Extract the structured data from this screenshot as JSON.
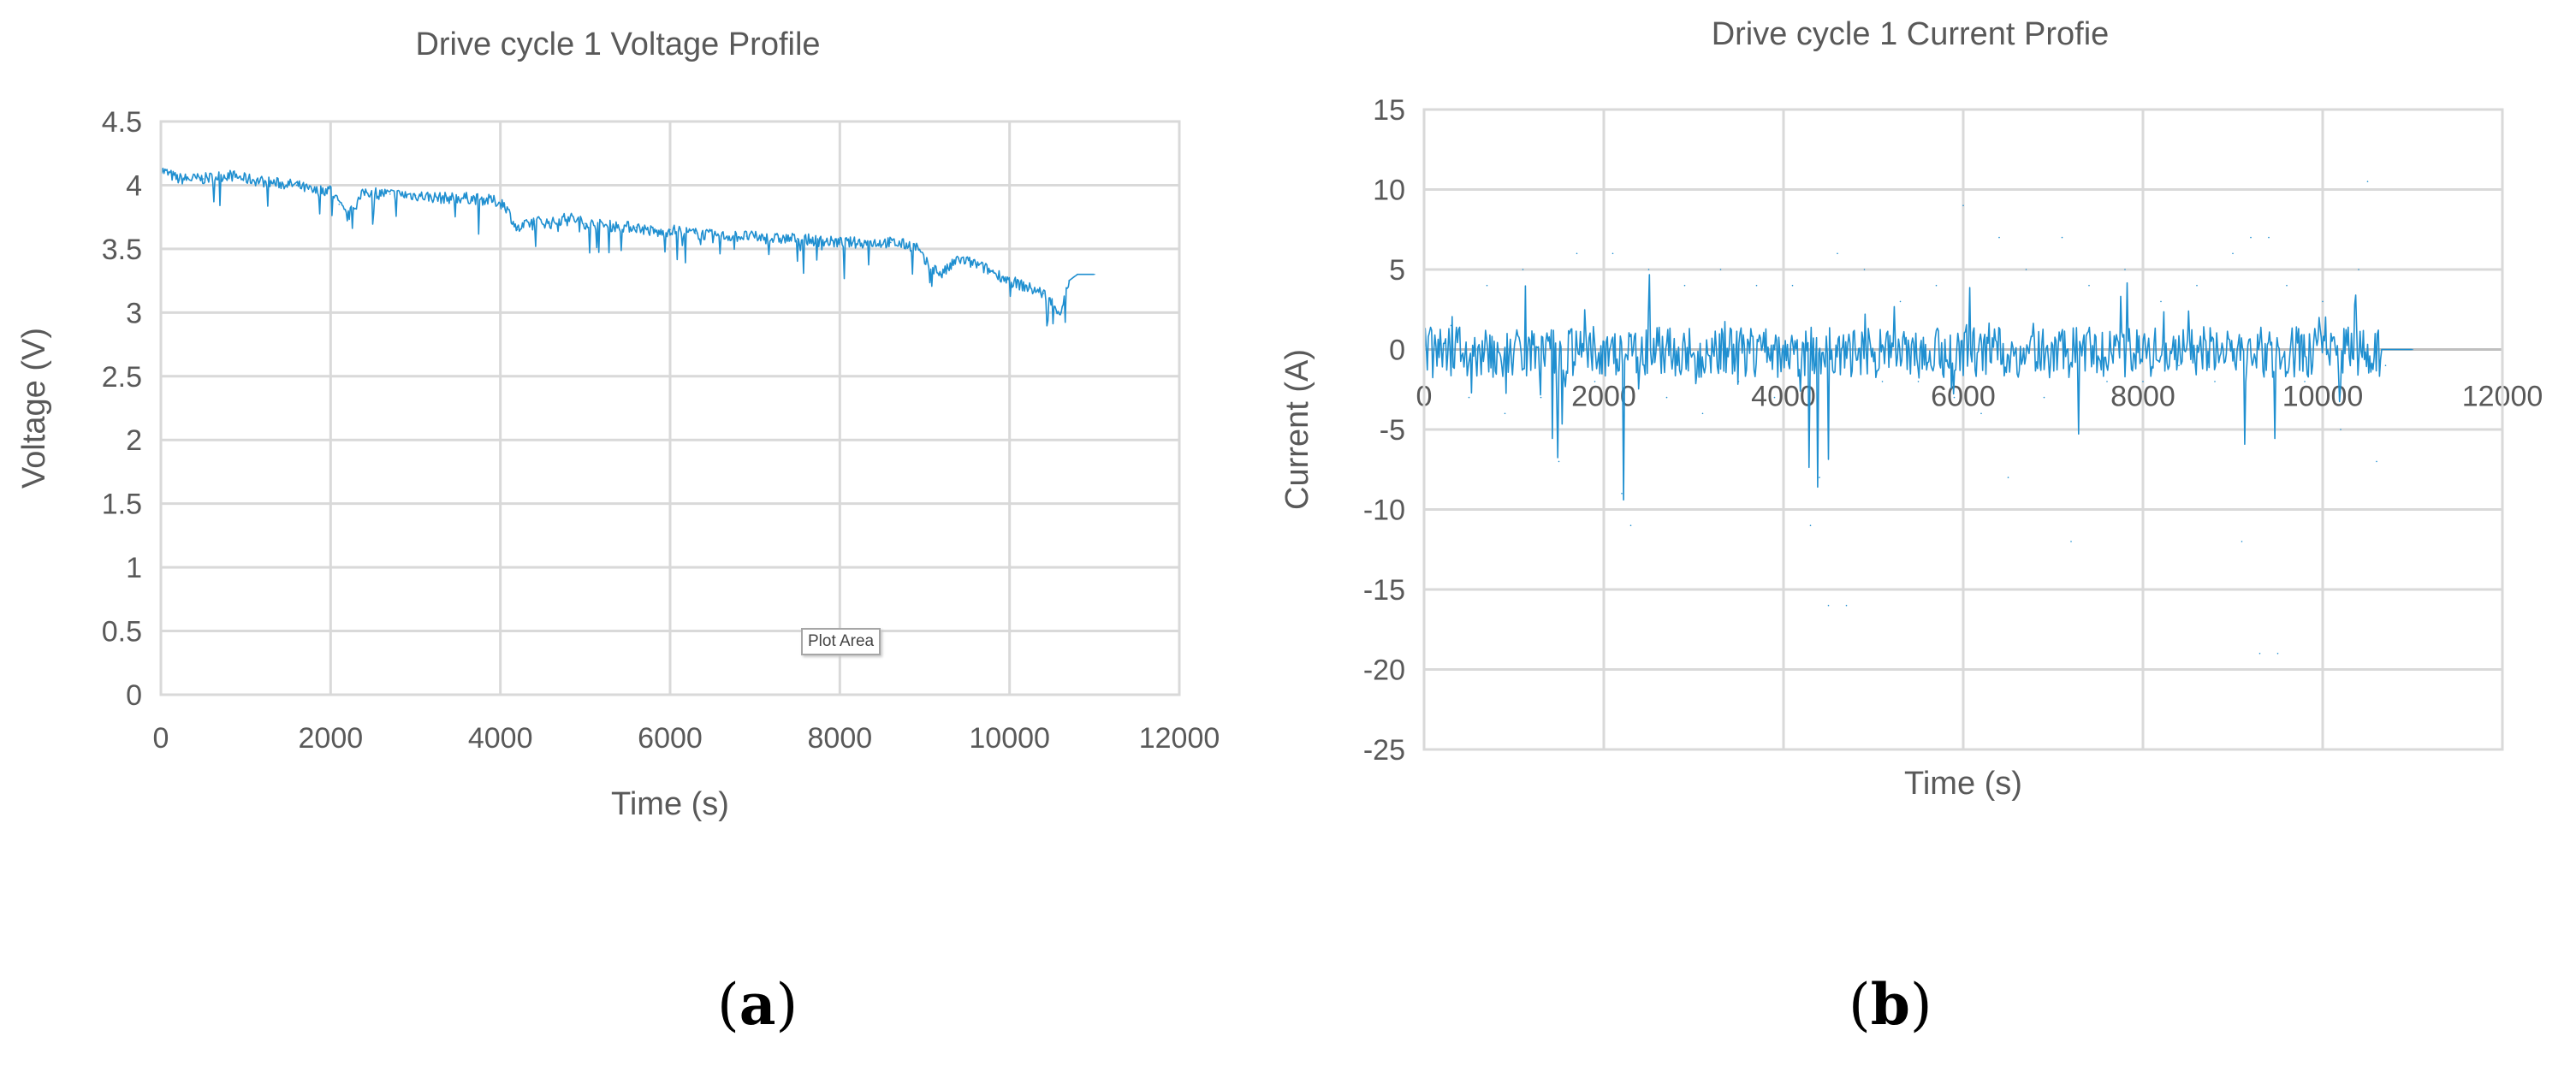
{
  "panels": [
    {
      "label_open": "(",
      "label_letter": "a",
      "label_close": ")"
    },
    {
      "label_open": "(",
      "label_letter": "b",
      "label_close": ")"
    }
  ],
  "plot_area_tag": "Plot Area",
  "series_color": "#1f8fd0",
  "chart_data": [
    {
      "type": "line",
      "title": "Drive cycle 1 Voltage Profile",
      "xlabel": "Time (s)",
      "ylabel": "Voltage (V)",
      "xlim": [
        0,
        12000
      ],
      "ylim": [
        0,
        4.5
      ],
      "xticks": [
        0,
        2000,
        4000,
        6000,
        8000,
        10000,
        12000
      ],
      "yticks": [
        0,
        0.5,
        1,
        1.5,
        2,
        2.5,
        3,
        3.5,
        4,
        4.5
      ],
      "grid": true,
      "legend": "none",
      "series": [
        {
          "x": [
            0,
            200,
            500,
            800,
            1000,
            1300,
            1600,
            1800,
            2000,
            2100,
            2200,
            2400,
            2700,
            3000,
            3300,
            3600,
            3900,
            4050,
            4200,
            4400,
            4600,
            4800,
            5000,
            5300,
            5600,
            5900,
            6000,
            6300,
            6600,
            6900,
            7200,
            7500,
            7800,
            8000,
            8300,
            8600,
            8900,
            9000,
            9200,
            9400,
            9600,
            9800,
            10000,
            10200,
            10400,
            10600,
            10700,
            10800,
            11000
          ],
          "values": [
            4.12,
            4.05,
            4.05,
            4.08,
            4.05,
            4.02,
            4.0,
            3.95,
            3.97,
            3.85,
            3.75,
            3.95,
            3.93,
            3.92,
            3.9,
            3.9,
            3.88,
            3.85,
            3.65,
            3.72,
            3.7,
            3.75,
            3.7,
            3.68,
            3.67,
            3.62,
            3.65,
            3.62,
            3.6,
            3.6,
            3.58,
            3.58,
            3.56,
            3.55,
            3.55,
            3.55,
            3.52,
            3.4,
            3.3,
            3.42,
            3.38,
            3.32,
            3.25,
            3.2,
            3.15,
            3.0,
            3.25,
            3.3,
            3.3
          ]
        }
      ]
    },
    {
      "type": "line",
      "title": "Drive cycle 1 Current Profie",
      "xlabel": "Time (s)",
      "ylabel": "Current (A)",
      "xlim": [
        0,
        12000
      ],
      "ylim": [
        -25,
        15
      ],
      "xticks": [
        0,
        2000,
        4000,
        6000,
        8000,
        10000,
        12000
      ],
      "yticks": [
        -25,
        -20,
        -15,
        -10,
        -5,
        0,
        5,
        10,
        15
      ],
      "grid": true,
      "legend": "none",
      "series": [
        {
          "x": [
            0,
            300,
            500,
            700,
            900,
            1100,
            1300,
            1500,
            1700,
            1900,
            2100,
            2200,
            2300,
            2500,
            2700,
            2900,
            3100,
            3300,
            3500,
            3700,
            3900,
            4100,
            4300,
            4400,
            4500,
            4600,
            4700,
            4900,
            5100,
            5300,
            5500,
            5700,
            5900,
            6000,
            6200,
            6400,
            6500,
            6700,
            6900,
            7100,
            7200,
            7400,
            7600,
            7800,
            8000,
            8200,
            8400,
            8600,
            8800,
            9000,
            9100,
            9200,
            9300,
            9400,
            9500,
            9600,
            9800,
            10000,
            10200,
            10400,
            10500,
            10600,
            10700,
            11000
          ],
          "values": [
            -2,
            1.5,
            -3,
            4,
            -4,
            5,
            -3,
            -7,
            6,
            -2,
            6,
            -9,
            -11,
            5,
            -3,
            4,
            -4,
            5,
            -2,
            4,
            -3,
            4,
            -11,
            -8,
            -16,
            6,
            -16,
            5,
            -2,
            3,
            -2,
            4,
            -3,
            9,
            -4,
            7,
            -8,
            5,
            -3,
            7,
            -12,
            4,
            -2,
            5,
            -2,
            3,
            -1,
            4,
            -2,
            6,
            -12,
            7,
            -19,
            7,
            -19,
            4,
            -2,
            3,
            -5,
            5,
            10.5,
            -7,
            -1,
            0
          ]
        }
      ]
    }
  ]
}
